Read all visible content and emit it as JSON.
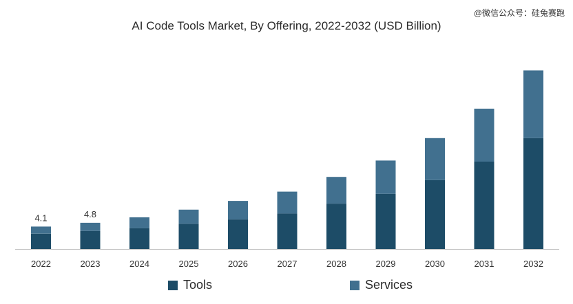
{
  "watermark": "@微信公众号：硅兔赛跑",
  "chart_data": {
    "type": "bar",
    "stacked": true,
    "title": "AI Code Tools Market, By Offering, 2022-2032 (USD Billion)",
    "xlabel": "",
    "ylabel": "",
    "categories": [
      "2022",
      "2023",
      "2024",
      "2025",
      "2026",
      "2027",
      "2028",
      "2029",
      "2030",
      "2031",
      "2032"
    ],
    "series": [
      {
        "name": "Tools",
        "color": "#1d4c67",
        "values": [
          2.8,
          3.3,
          3.8,
          4.6,
          5.4,
          6.5,
          8.3,
          10.1,
          12.6,
          16.0,
          20.3
        ]
      },
      {
        "name": "Services",
        "color": "#41708f",
        "values": [
          1.3,
          1.5,
          2.0,
          2.6,
          3.4,
          4.0,
          4.9,
          6.1,
          7.7,
          9.7,
          12.4
        ]
      }
    ],
    "data_labels": [
      "4.1",
      "4.8",
      "",
      "",
      "",
      "",
      "",
      "",
      "",
      "",
      ""
    ],
    "ylim": [
      0,
      33
    ],
    "grid": false,
    "legend_position": "bottom"
  }
}
